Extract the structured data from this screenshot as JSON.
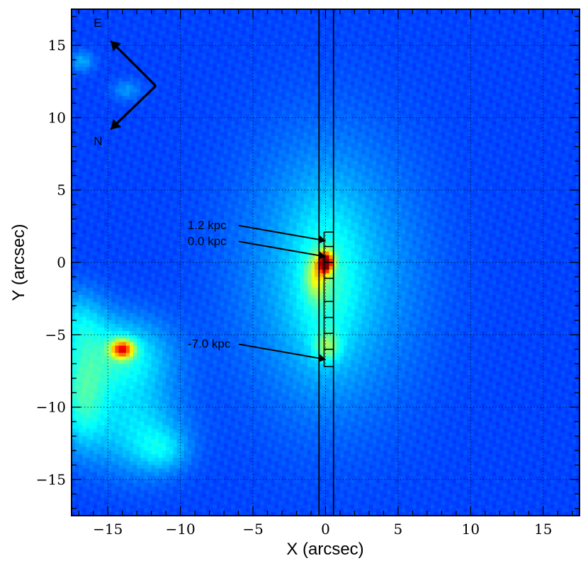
{
  "chart_data": {
    "type": "heatmap",
    "title": "",
    "xlabel": "X (arcsec)",
    "ylabel": "Y (arcsec)",
    "xlim": [
      -17.5,
      17.5
    ],
    "ylim": [
      -17.5,
      17.5
    ],
    "xticks": [
      -15,
      -10,
      -5,
      0,
      5,
      10,
      15
    ],
    "yticks": [
      -15,
      -10,
      -5,
      0,
      5,
      10,
      15
    ],
    "xtick_labels": [
      "−15",
      "−10",
      "−5",
      "0",
      "5",
      "10",
      "15"
    ],
    "ytick_labels": [
      "−15",
      "−10",
      "−5",
      "0",
      "5",
      "10",
      "15"
    ],
    "grid": true,
    "colormap": "jet",
    "sources": [
      {
        "x": 0.0,
        "y": 0.0,
        "peak": 1.0,
        "sx": 0.35,
        "sy": 0.5
      },
      {
        "x": -14.0,
        "y": -6.0,
        "peak": 0.9,
        "sx": 0.6,
        "sy": 0.5
      },
      {
        "x": 0.0,
        "y": -5.8,
        "peak": 0.45,
        "sx": 0.5,
        "sy": 0.6
      }
    ],
    "slit": {
      "x_min": -0.45,
      "x_max": 0.55
    },
    "apertures_y": [
      2.1,
      1.1,
      0.0,
      -1.1,
      -2.7,
      -3.8,
      -4.9,
      -6.0,
      -7.2
    ],
    "annotations": [
      {
        "text": "1.2 kpc",
        "text_x": -9.5,
        "text_y": 2.6,
        "arrow_to_x": 0.0,
        "arrow_to_y": 1.5
      },
      {
        "text": "0.0 kpc",
        "text_x": -9.5,
        "text_y": 1.5,
        "arrow_to_x": 0.0,
        "arrow_to_y": 0.4
      },
      {
        "text": "-7.0 kpc",
        "text_x": -9.5,
        "text_y": -5.6,
        "arrow_to_x": 0.0,
        "arrow_to_y": -6.7
      }
    ],
    "compass": {
      "east_label": "E",
      "north_label": "N",
      "vertex_x": -11.7,
      "vertex_y": 12.2,
      "east_tip_x": -14.8,
      "east_tip_y": 15.3,
      "north_tip_x": -14.8,
      "north_tip_y": 9.2
    }
  },
  "colors": {
    "background": "#1a3fd9",
    "frame": "#000000",
    "grid": "#000000"
  }
}
